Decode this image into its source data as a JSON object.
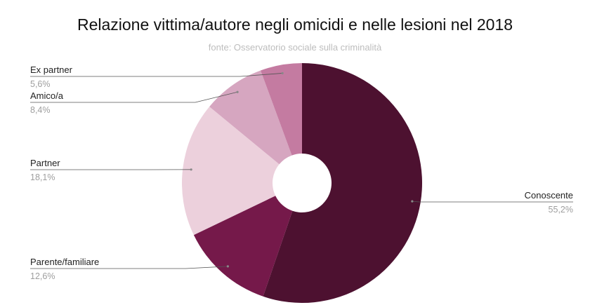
{
  "chart_data": {
    "type": "pie",
    "donut": true,
    "title": "Relazione vittima/autore negli omicidi e nelle lesioni nel  2018",
    "subtitle": "fonte: Osservatorio sociale sulla criminalità",
    "categories": [
      "Conoscente",
      "Parente/familiare",
      "Partner",
      "Amico/a",
      "Ex partner"
    ],
    "values": [
      55.2,
      12.6,
      18.1,
      8.4,
      5.6
    ],
    "value_labels": [
      "55,2%",
      "12,6%",
      "18,1%",
      "8,4%",
      "5,6%"
    ],
    "colors": [
      "#4d1130",
      "#75194a",
      "#ecd0dc",
      "#d6a6c0",
      "#c47ba1"
    ],
    "legend": "none"
  }
}
